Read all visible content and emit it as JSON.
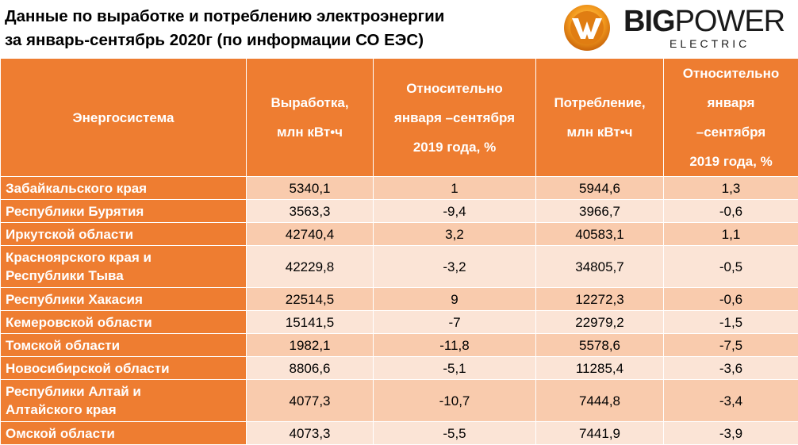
{
  "title": {
    "line1": "Данные по выработке и потреблению электроэнергии",
    "line2": "за январь-сентябрь 2020г (по информации СО ЕЭС)"
  },
  "logo": {
    "word_big": "BIG",
    "word_power": "POWER",
    "subtitle": "ELECTRIC",
    "colors": {
      "ring": "#f39a1e",
      "bolt": "#ffffff",
      "text": "#1a1a1a"
    }
  },
  "table": {
    "headers": [
      {
        "lines": [
          "Энергосистема"
        ]
      },
      {
        "lines": [
          "Выработка,",
          "млн кВт•ч"
        ]
      },
      {
        "lines": [
          "Относительно",
          "января –сентября",
          "2019 года, %"
        ]
      },
      {
        "lines": [
          "Потребление,",
          "млн кВт•ч"
        ]
      },
      {
        "lines": [
          "Относительно",
          "января",
          "–сентября",
          "2019 года, %"
        ]
      }
    ],
    "rows": [
      {
        "region": [
          "Забайкальского края"
        ],
        "generation": "5340,1",
        "gen_change": "1",
        "consumption": "5944,6",
        "cons_change": "1,3"
      },
      {
        "region": [
          "Республики Бурятия"
        ],
        "generation": "3563,3",
        "gen_change": "-9,4",
        "consumption": "3966,7",
        "cons_change": "-0,6"
      },
      {
        "region": [
          "Иркутской области"
        ],
        "generation": "42740,4",
        "gen_change": "3,2",
        "consumption": "40583,1",
        "cons_change": "1,1"
      },
      {
        "region": [
          "Красноярского края и",
          "Республики Тыва"
        ],
        "generation": "42229,8",
        "gen_change": "-3,2",
        "consumption": "34805,7",
        "cons_change": "-0,5"
      },
      {
        "region": [
          "Республики Хакасия"
        ],
        "generation": "22514,5",
        "gen_change": "9",
        "consumption": "12272,3",
        "cons_change": "-0,6"
      },
      {
        "region": [
          "Кемеровской области"
        ],
        "generation": "15141,5",
        "gen_change": "-7",
        "consumption": "22979,2",
        "cons_change": "-1,5"
      },
      {
        "region": [
          "Томской области"
        ],
        "generation": "1982,1",
        "gen_change": "-11,8",
        "consumption": "5578,6",
        "cons_change": "-7,5"
      },
      {
        "region": [
          "Новосибирской области"
        ],
        "generation": "8806,6",
        "gen_change": "-5,1",
        "consumption": "11285,4",
        "cons_change": "-3,6"
      },
      {
        "region": [
          "Республики Алтай и",
          "Алтайского края"
        ],
        "generation": "4077,3",
        "gen_change": "-10,7",
        "consumption": "7444,8",
        "cons_change": "-3,4"
      },
      {
        "region": [
          "Омской области"
        ],
        "generation": "4073,3",
        "gen_change": "-5,5",
        "consumption": "7441,9",
        "cons_change": "-3,9"
      }
    ],
    "colors": {
      "header_bg": "#ee7d31",
      "row_odd_bg": "#f9cbad",
      "row_even_bg": "#fbe4d6"
    }
  }
}
